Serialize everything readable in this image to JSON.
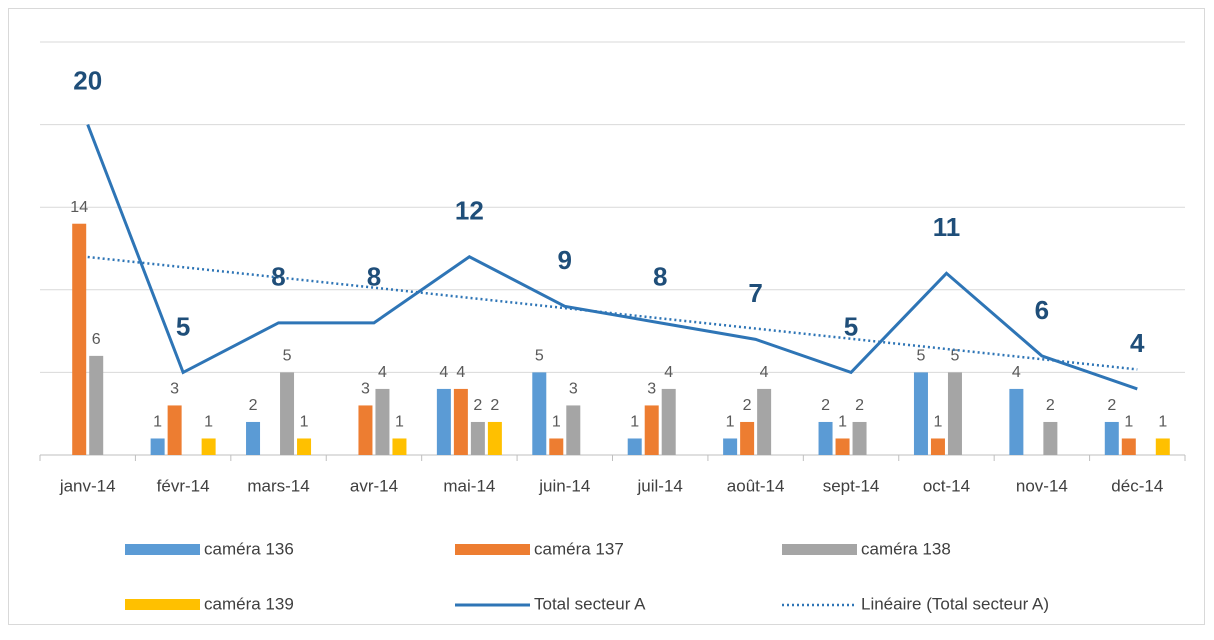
{
  "chart_data": {
    "type": "bar",
    "categories": [
      "janv-14",
      "févr-14",
      "mars-14",
      "avr-14",
      "mai-14",
      "juin-14",
      "juil-14",
      "août-14",
      "sept-14",
      "oct-14",
      "nov-14",
      "déc-14"
    ],
    "series": [
      {
        "name": "caméra 136",
        "color": "#5b9bd5",
        "values": [
          null,
          1,
          2,
          null,
          4,
          5,
          1,
          1,
          2,
          5,
          4,
          2
        ]
      },
      {
        "name": "caméra 137",
        "color": "#ed7d31",
        "values": [
          14,
          3,
          null,
          3,
          4,
          1,
          3,
          2,
          1,
          1,
          null,
          1
        ]
      },
      {
        "name": "caméra 138",
        "color": "#a5a5a5",
        "values": [
          6,
          null,
          5,
          4,
          2,
          3,
          4,
          4,
          2,
          5,
          2,
          null
        ]
      },
      {
        "name": "caméra 139",
        "color": "#ffc000",
        "values": [
          null,
          1,
          1,
          1,
          2,
          null,
          null,
          null,
          null,
          null,
          null,
          1
        ]
      },
      {
        "name": "Total secteur A",
        "type": "line",
        "color": "#2e75b6",
        "values": [
          20,
          5,
          8,
          8,
          12,
          9,
          8,
          7,
          5,
          11,
          6,
          4
        ],
        "trendline": {
          "name": "Linéaire  (Total secteur A)",
          "type": "linear",
          "style": "dotted"
        }
      }
    ],
    "ylim": [
      0,
      25
    ],
    "yticks": [
      0,
      5,
      10,
      15,
      20,
      25
    ],
    "grid": true,
    "legend": "bottom"
  }
}
